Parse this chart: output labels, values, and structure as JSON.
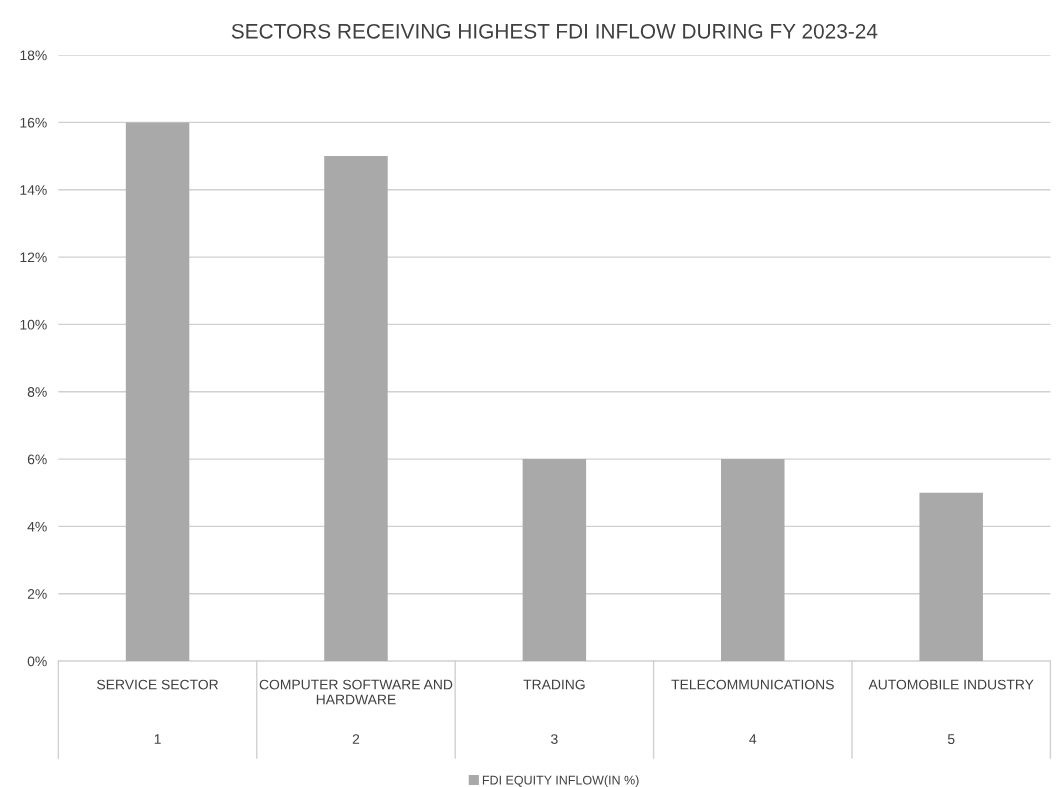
{
  "chart_data": {
    "type": "bar",
    "title": "SECTORS RECEIVING HIGHEST FDI INFLOW DURING FY 2023-24",
    "categories": [
      "SERVICE SECTOR",
      "COMPUTER SOFTWARE AND HARDWARE",
      "TRADING",
      "TELECOMMUNICATIONS",
      "AUTOMOBILE INDUSTRY"
    ],
    "annotations": [
      "1",
      "2",
      "3",
      "4",
      "5"
    ],
    "series": [
      {
        "name": "FDI EQUITY INFLOW(IN %)",
        "color": "#a9a9a9",
        "values": [
          16,
          15,
          6,
          6,
          5
        ]
      }
    ],
    "ylim": [
      0,
      18
    ],
    "yticks": [
      {
        "value": 0,
        "label": "0%"
      },
      {
        "value": 2,
        "label": "2%"
      },
      {
        "value": 4,
        "label": "4%"
      },
      {
        "value": 6,
        "label": "6%"
      },
      {
        "value": 8,
        "label": "8%"
      },
      {
        "value": 10,
        "label": "10%"
      },
      {
        "value": 12,
        "label": "12%"
      },
      {
        "value": 14,
        "label": "14%"
      },
      {
        "value": 16,
        "label": "16%"
      },
      {
        "value": 18,
        "label": "18%"
      }
    ],
    "grid": "y",
    "legend": "bottom"
  }
}
